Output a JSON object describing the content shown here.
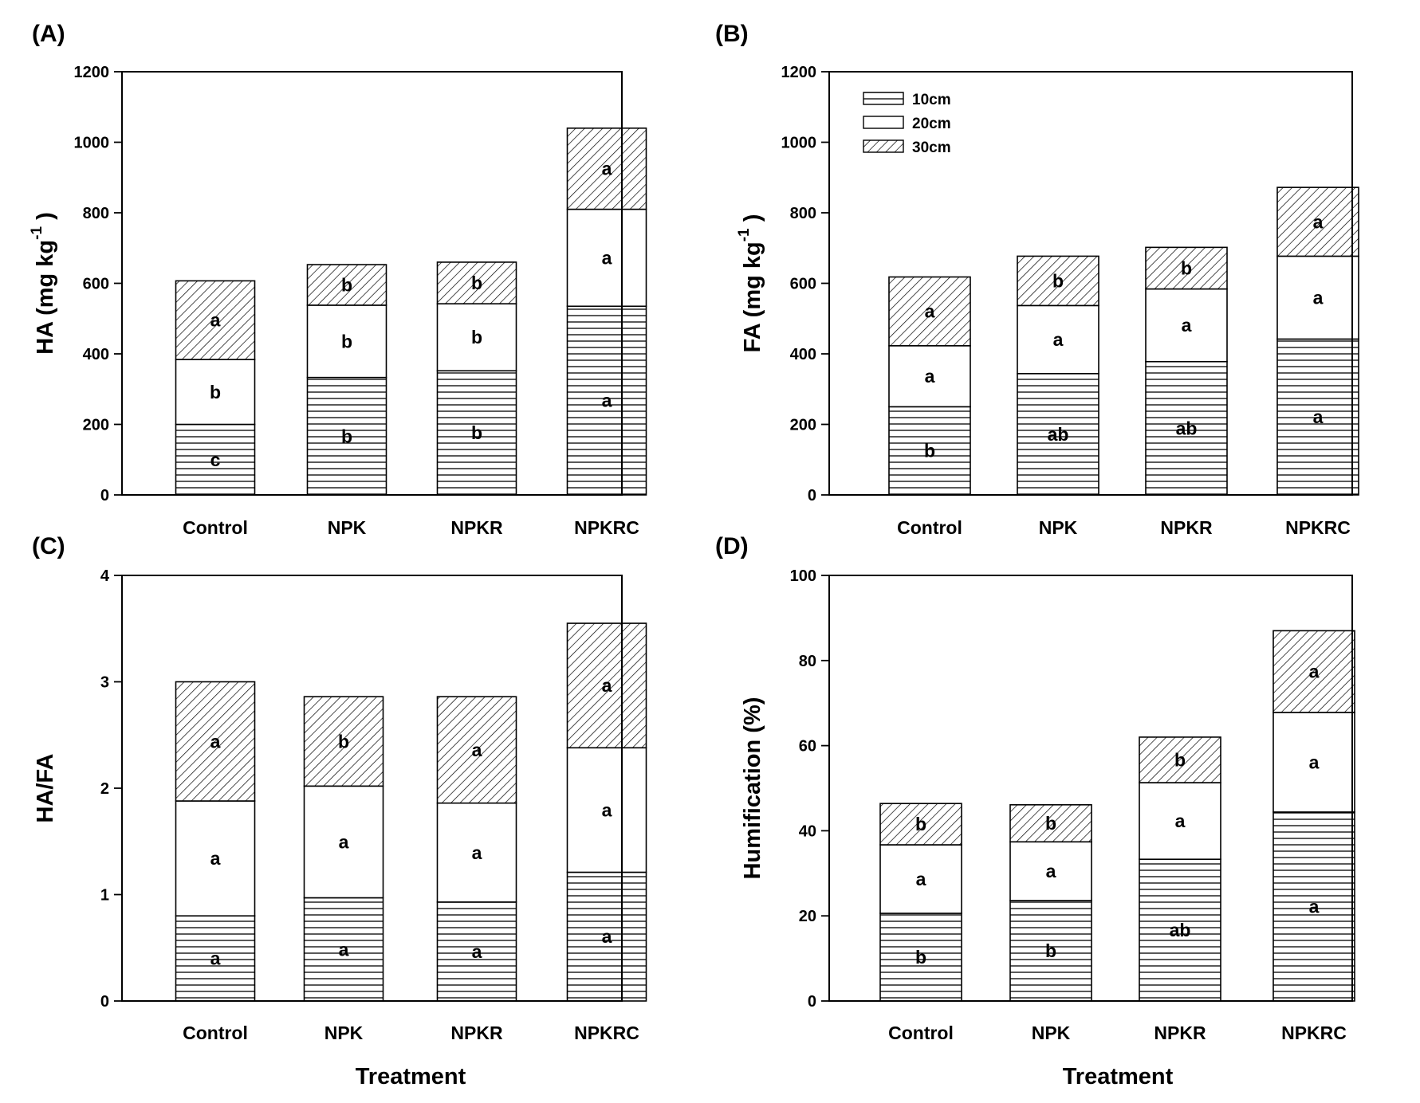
{
  "chart_data": [
    {
      "panel": "(A)",
      "type": "bar",
      "stacked": true,
      "categories": [
        "Control",
        "NPK",
        "NPKR",
        "NPKRC"
      ],
      "ylabel": "HA (mg kg",
      "ylabel_sup": "-1",
      "ylabel_end": ")",
      "xlabel": "",
      "ylim": [
        0,
        1200
      ],
      "yticks": [
        0,
        200,
        400,
        600,
        800,
        1000,
        1200
      ],
      "series": [
        {
          "name": "10cm",
          "values": [
            200,
            333,
            352,
            535
          ],
          "letters": [
            "c",
            "b",
            "b",
            "a"
          ]
        },
        {
          "name": "20cm",
          "values": [
            184,
            205,
            190,
            275
          ],
          "letters": [
            "b",
            "b",
            "b",
            "a"
          ]
        },
        {
          "name": "30cm",
          "values": [
            223,
            115,
            118,
            230
          ],
          "letters": [
            "a",
            "b",
            "b",
            "a"
          ]
        }
      ]
    },
    {
      "panel": "(B)",
      "type": "bar",
      "stacked": true,
      "categories": [
        "Control",
        "NPK",
        "NPKR",
        "NPKRC"
      ],
      "ylabel": "FA (mg kg",
      "ylabel_sup": "-1",
      "ylabel_end": ")",
      "xlabel": "",
      "ylim": [
        0,
        1200
      ],
      "yticks": [
        0,
        200,
        400,
        600,
        800,
        1000,
        1200
      ],
      "legend": {
        "position": "top-left",
        "entries": [
          "10cm",
          "20cm",
          "30cm"
        ]
      },
      "series": [
        {
          "name": "10cm",
          "values": [
            250,
            344,
            378,
            442
          ],
          "letters": [
            "b",
            "ab",
            "ab",
            "a"
          ]
        },
        {
          "name": "20cm",
          "values": [
            173,
            193,
            206,
            235
          ],
          "letters": [
            "a",
            "a",
            "a",
            "a"
          ]
        },
        {
          "name": "30cm",
          "values": [
            195,
            140,
            118,
            195
          ],
          "letters": [
            "a",
            "b",
            "b",
            "a"
          ]
        }
      ]
    },
    {
      "panel": "(C)",
      "type": "bar",
      "stacked": true,
      "categories": [
        "Control",
        "NPK",
        "NPKR",
        "NPKRC"
      ],
      "ylabel": "HA/FA",
      "xlabel": "Treatment",
      "ylim": [
        0,
        4
      ],
      "yticks": [
        0,
        1,
        2,
        3,
        4
      ],
      "series": [
        {
          "name": "10cm",
          "values": [
            0.8,
            0.97,
            0.93,
            1.21
          ],
          "letters": [
            "a",
            "a",
            "a",
            "a"
          ]
        },
        {
          "name": "20cm",
          "values": [
            1.08,
            1.05,
            0.93,
            1.17
          ],
          "letters": [
            "a",
            "a",
            "a",
            "a"
          ]
        },
        {
          "name": "30cm",
          "values": [
            1.12,
            0.84,
            1.0,
            1.17
          ],
          "letters": [
            "a",
            "b",
            "a",
            "a"
          ]
        }
      ]
    },
    {
      "panel": "(D)",
      "type": "bar",
      "stacked": true,
      "categories": [
        "Control",
        "NPK",
        "NPKR",
        "NPKRC"
      ],
      "ylabel": "Humification (%)",
      "xlabel": "Treatment",
      "ylim": [
        0,
        100
      ],
      "yticks": [
        0,
        20,
        40,
        60,
        80,
        100
      ],
      "series": [
        {
          "name": "10cm",
          "values": [
            20.6,
            23.6,
            33.3,
            44.4
          ],
          "letters": [
            "b",
            "b",
            "ab",
            "a"
          ]
        },
        {
          "name": "20cm",
          "values": [
            16.1,
            13.8,
            18.0,
            23.4
          ],
          "letters": [
            "a",
            "a",
            "a",
            "a"
          ]
        },
        {
          "name": "30cm",
          "values": [
            9.7,
            8.7,
            10.7,
            19.2
          ],
          "letters": [
            "b",
            "b",
            "b",
            "a"
          ]
        }
      ]
    }
  ],
  "colors": {
    "line": "#000000",
    "fill_20cm": "#ffffff"
  }
}
